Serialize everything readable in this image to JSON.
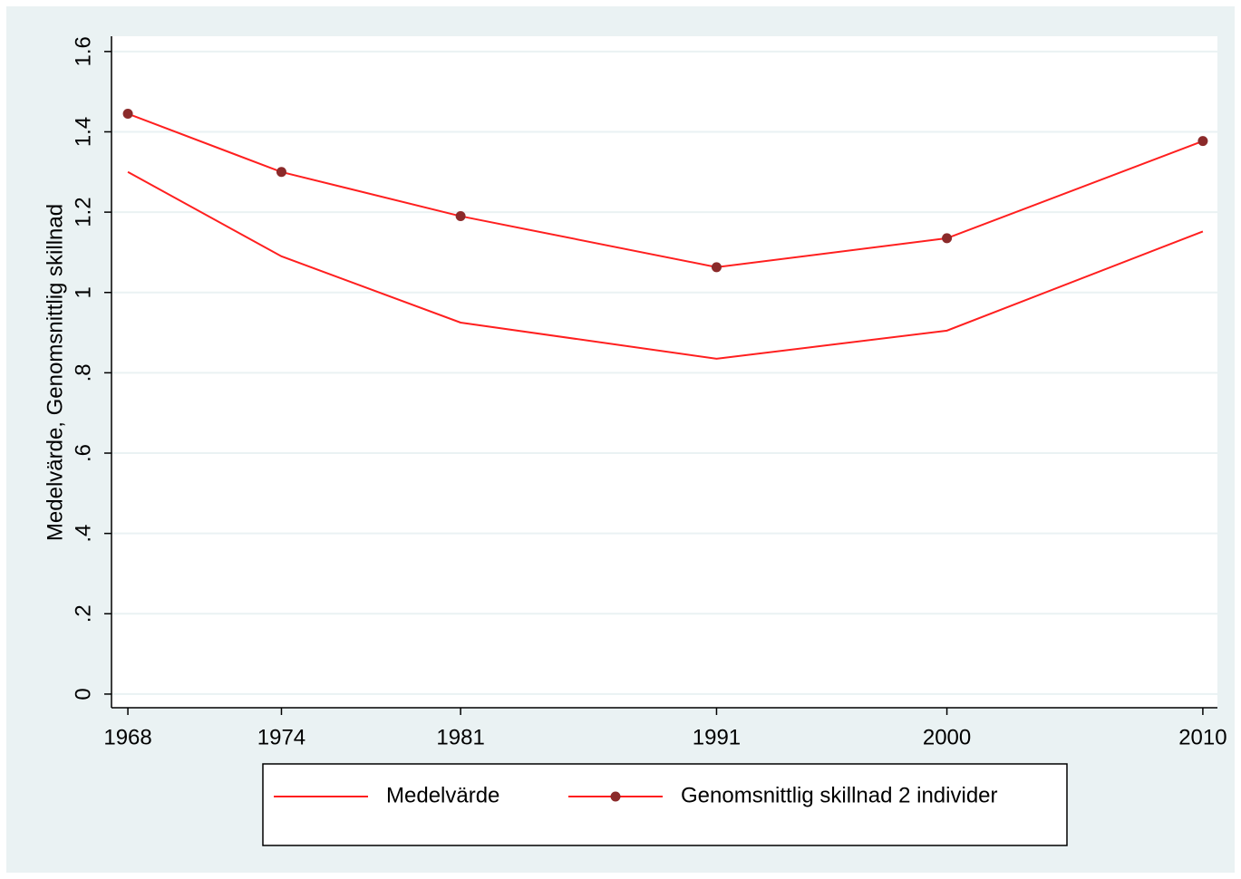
{
  "chart_data": {
    "type": "line",
    "y_label": "Medelvärde, Genomsnittlig skillnad",
    "x": [
      1968,
      1974,
      1981,
      1991,
      2000,
      2010
    ],
    "xlim": [
      1967.36,
      2010.57
    ],
    "xticks": [
      1968,
      1974,
      1981,
      1991,
      2000,
      2010
    ],
    "ylim": [
      -0.034,
      1.638
    ],
    "yticks": [
      0,
      {
        "value": 0.2,
        "label": ".2"
      },
      {
        "value": 0.4,
        "label": ".4"
      },
      {
        "value": 0.6,
        "label": ".6"
      },
      {
        "value": 0.8,
        "label": ".8"
      },
      1,
      1.2,
      1.4,
      1.6
    ],
    "grid": true,
    "legend": "bottom",
    "series": [
      {
        "name": "Medelvärde",
        "color": "#ff1f1f",
        "values": [
          1.3,
          1.09,
          0.925,
          0.835,
          0.905,
          1.152
        ]
      },
      {
        "name": "Genomsnittlig skillnad 2 individer",
        "color": "#ff1f1f",
        "marker_color": "#8b2a2a",
        "values": [
          1.445,
          1.3,
          1.19,
          1.063,
          1.135,
          1.377
        ]
      }
    ]
  }
}
